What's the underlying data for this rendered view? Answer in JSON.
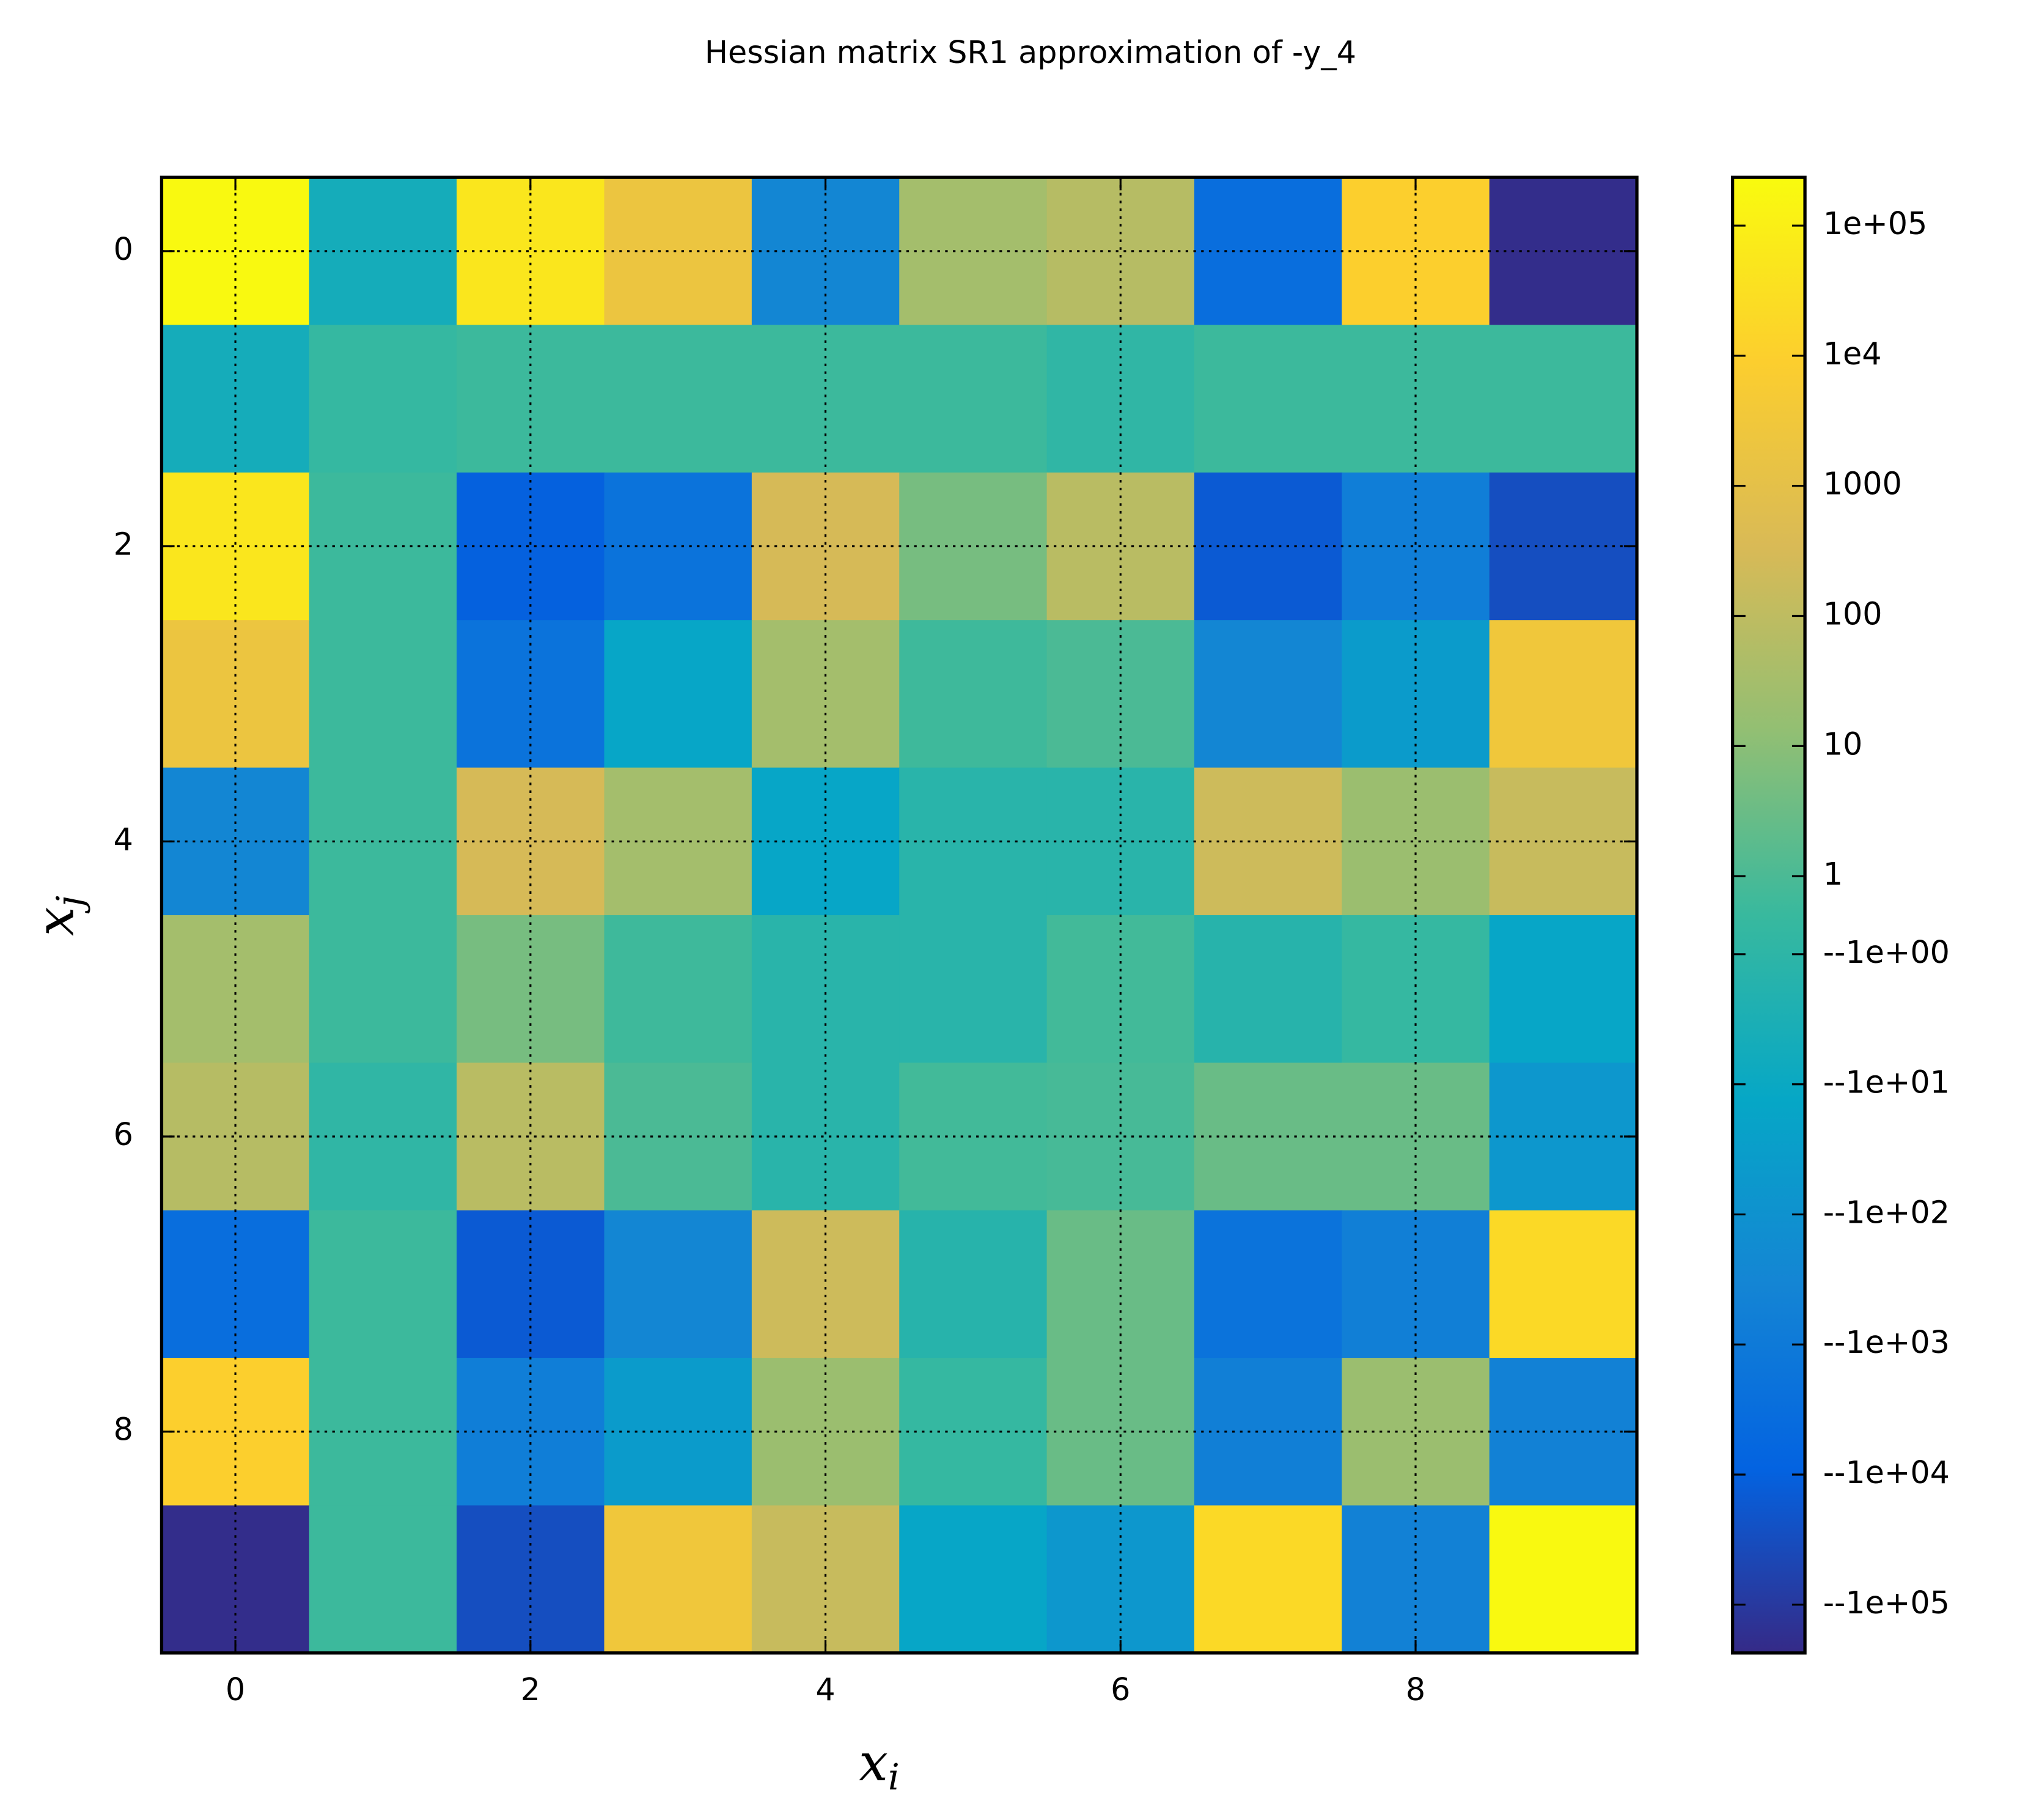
{
  "chart_data": {
    "type": "heatmap",
    "title": "Hessian matrix SR1 approximation of -y_4",
    "xlabel": {
      "base": "x",
      "subscript": "i"
    },
    "ylabel": {
      "base": "x",
      "subscript": "j"
    },
    "x": [
      0,
      1,
      2,
      3,
      4,
      5,
      6,
      7,
      8,
      9
    ],
    "y": [
      0,
      1,
      2,
      3,
      4,
      5,
      6,
      7,
      8,
      9
    ],
    "z": [
      [
        200000,
        -5,
        50000,
        2000,
        -300,
        30,
        70,
        -3000,
        10000,
        -200000
      ],
      [
        -5,
        -0.3,
        0.2,
        0.2,
        0.2,
        0.2,
        -0.8,
        0.2,
        0.2,
        0.2
      ],
      [
        50000,
        0.2,
        -10000,
        -2000,
        300,
        5,
        80,
        -15000,
        -700,
        -30000
      ],
      [
        2000,
        0.2,
        -2000,
        -15,
        30,
        0.3,
        1,
        -300,
        -40,
        3000
      ],
      [
        -300,
        0.2,
        300,
        30,
        -15,
        -1.3,
        -1.3,
        200,
        20,
        150
      ],
      [
        30,
        0.2,
        5,
        0.3,
        -1.3,
        -1.3,
        0.5,
        -1.5,
        -0.3,
        -15
      ],
      [
        70,
        -0.8,
        80,
        1,
        -1.3,
        0.5,
        0.8,
        3,
        3,
        -60
      ],
      [
        -3000,
        0.2,
        -15000,
        -300,
        200,
        -1.5,
        3,
        -2000,
        -600,
        20000
      ],
      [
        10000,
        0.2,
        -700,
        -40,
        20,
        -0.3,
        3,
        -600,
        20,
        -500
      ],
      [
        -200000,
        0.2,
        -30000,
        3000,
        150,
        -15,
        -60,
        20000,
        -500,
        200000
      ]
    ],
    "xlim": [
      -0.5,
      9.5
    ],
    "ylim": [
      9.5,
      -0.5
    ],
    "xticks": [
      0,
      2,
      4,
      6,
      8
    ],
    "yticks": [
      0,
      2,
      4,
      6,
      8
    ],
    "grid": true,
    "color_scale": "symlog",
    "linthresh": 1,
    "linscale": 0.3,
    "clim": [
      -235000,
      235000
    ],
    "colormap": [
      "#352a87",
      "#0363e1",
      "#1485d4",
      "#06a7c6",
      "#38b99e",
      "#92bf73",
      "#d9ba56",
      "#fcce2e",
      "#f9fb0e"
    ],
    "cticks": [
      {
        "value": 100000,
        "label": "1e+05"
      },
      {
        "value": 10000,
        "label": "1e4"
      },
      1000,
      100,
      10,
      1,
      {
        "value": -1,
        "label": "--1e+00"
      },
      {
        "value": -10,
        "label": "--1e+01"
      },
      {
        "value": -100,
        "label": "--1e+02"
      },
      {
        "value": -1000,
        "label": "--1e+03"
      },
      {
        "value": -10000,
        "label": "--1e+04"
      },
      {
        "value": -100000,
        "label": "--1e+05"
      }
    ]
  }
}
